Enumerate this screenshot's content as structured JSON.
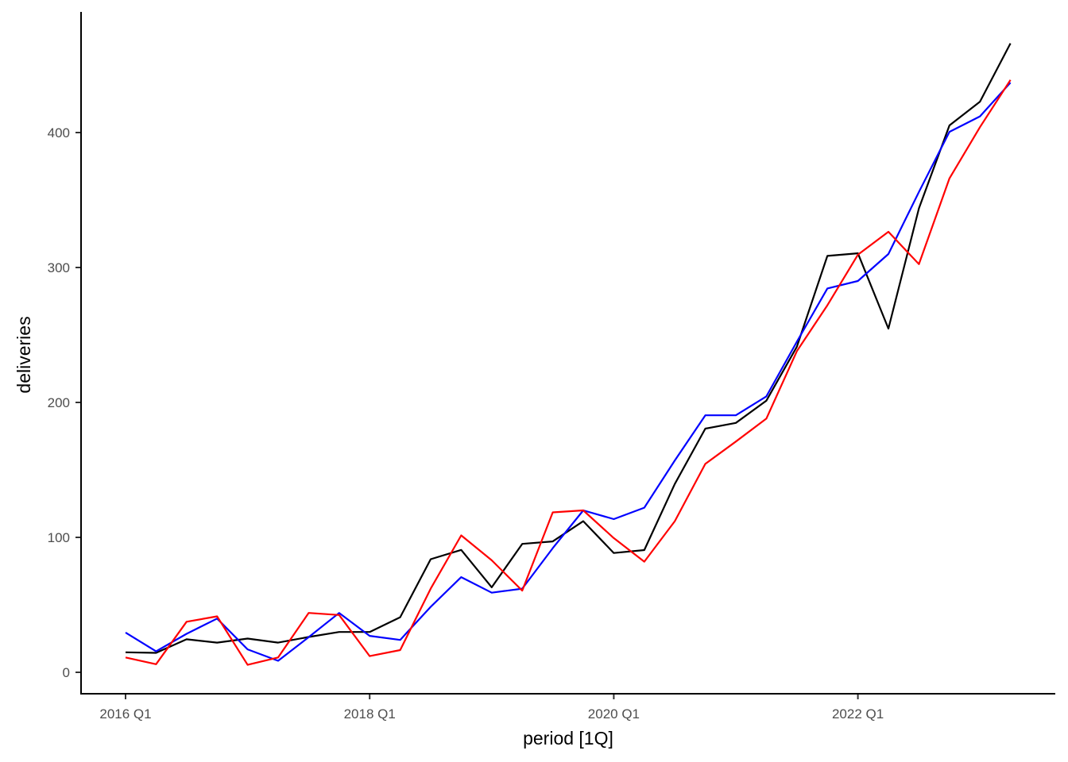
{
  "chart_data": {
    "type": "line",
    "title": "",
    "xlabel": "period [1Q]",
    "ylabel": "deliveries",
    "x": [
      "2016 Q1",
      "2016 Q2",
      "2016 Q3",
      "2016 Q4",
      "2017 Q1",
      "2017 Q2",
      "2017 Q3",
      "2017 Q4",
      "2018 Q1",
      "2018 Q2",
      "2018 Q3",
      "2018 Q4",
      "2019 Q1",
      "2019 Q2",
      "2019 Q3",
      "2019 Q4",
      "2020 Q1",
      "2020 Q2",
      "2020 Q3",
      "2020 Q4",
      "2021 Q1",
      "2021 Q2",
      "2021 Q3",
      "2021 Q4",
      "2022 Q1",
      "2022 Q2",
      "2022 Q3",
      "2022 Q4",
      "2023 Q1",
      "2023 Q2"
    ],
    "x_ticks": [
      "2016 Q1",
      "2018 Q1",
      "2020 Q1",
      "2022 Q1"
    ],
    "y_ticks": [
      0,
      100,
      200,
      300,
      400
    ],
    "ylim": [
      -17,
      485
    ],
    "grid": false,
    "legend": "none",
    "series": [
      {
        "color": "#000000",
        "values": [
          14.8,
          14.4,
          24.5,
          22.0,
          25.0,
          22.0,
          26.2,
          29.9,
          29.9,
          40.8,
          83.8,
          90.7,
          63.0,
          95.2,
          97.0,
          112.0,
          88.4,
          90.6,
          139.6,
          180.6,
          184.8,
          201.3,
          241.3,
          308.6,
          310.5,
          254.7,
          343.8,
          405.3,
          422.9,
          466.1
        ]
      },
      {
        "color": "#0000ff",
        "values": [
          29.5,
          15.5,
          28.5,
          39.8,
          17.0,
          8.5,
          26.0,
          44.0,
          27.0,
          24.0,
          48.5,
          70.5,
          59.0,
          62.0,
          92.0,
          120.0,
          113.5,
          122.0,
          157.0,
          190.5,
          190.5,
          204.5,
          245.0,
          284.5,
          290.0,
          310.0,
          356.0,
          400.5,
          412.0,
          437.0
        ]
      },
      {
        "color": "#ff0000",
        "values": [
          11.0,
          6.0,
          37.5,
          41.5,
          5.5,
          11.0,
          44.0,
          42.5,
          12.0,
          16.5,
          62.0,
          101.5,
          83.0,
          60.5,
          118.5,
          120.0,
          99.5,
          82.0,
          112.0,
          154.5,
          171.0,
          188.0,
          238.0,
          272.0,
          309.5,
          326.5,
          302.5,
          366.0,
          404.0,
          439.0
        ]
      }
    ]
  }
}
